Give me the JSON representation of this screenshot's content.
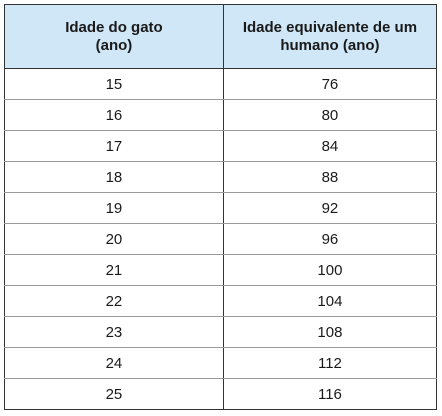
{
  "table": {
    "headers": {
      "col1": {
        "line1": "Idade do gato",
        "line2": "(ano)"
      },
      "col2": {
        "line1": "Idade equivalente de um",
        "line2": "humano (ano)"
      }
    },
    "rows": [
      {
        "cat_age": "15",
        "human_age": "76"
      },
      {
        "cat_age": "16",
        "human_age": "80"
      },
      {
        "cat_age": "17",
        "human_age": "84"
      },
      {
        "cat_age": "18",
        "human_age": "88"
      },
      {
        "cat_age": "19",
        "human_age": "92"
      },
      {
        "cat_age": "20",
        "human_age": "96"
      },
      {
        "cat_age": "21",
        "human_age": "100"
      },
      {
        "cat_age": "22",
        "human_age": "104"
      },
      {
        "cat_age": "23",
        "human_age": "108"
      },
      {
        "cat_age": "24",
        "human_age": "112"
      },
      {
        "cat_age": "25",
        "human_age": "116"
      }
    ],
    "header_bg": "#cfe7f6",
    "border_color": "#333333"
  }
}
